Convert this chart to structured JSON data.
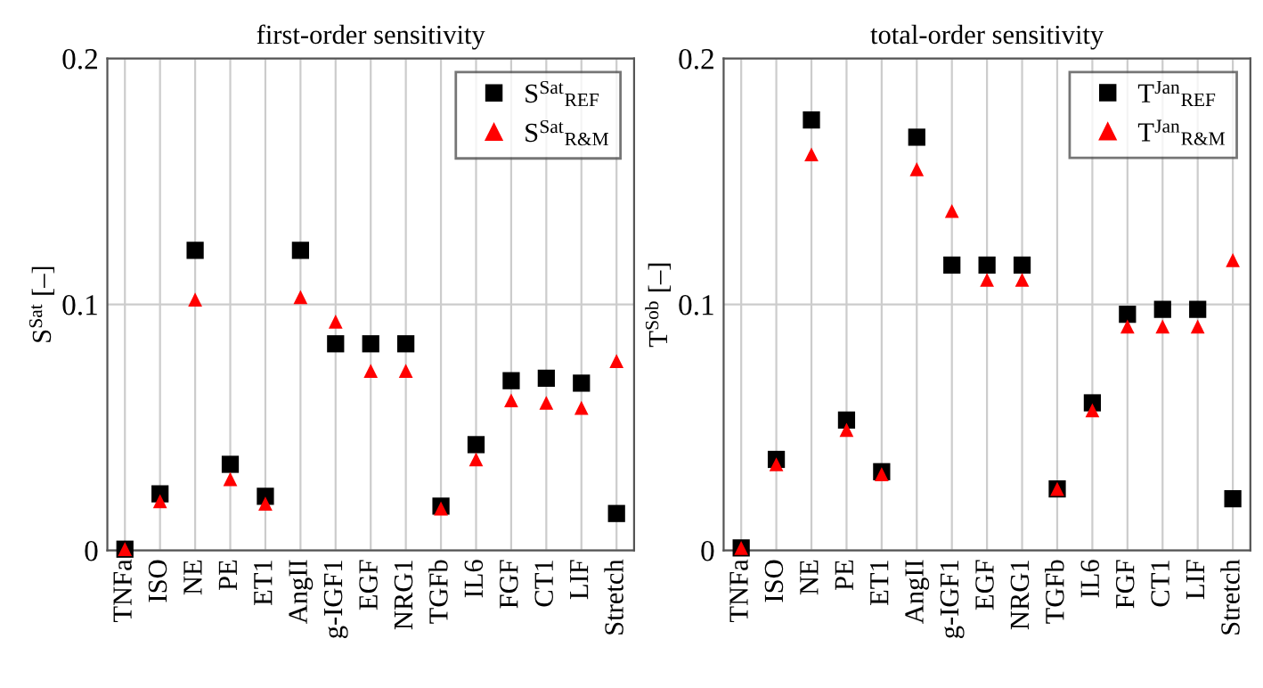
{
  "chart_data": [
    {
      "type": "scatter",
      "title": "first-order sensitivity",
      "ylabel": "S$^{Sat}$ [–]",
      "categories": [
        "TNFa",
        "ISO",
        "NE",
        "PE",
        "ET1",
        "AngII",
        "g-IGF1",
        "EGF",
        "NRG1",
        "TGFb",
        "IL6",
        "FGF",
        "CT1",
        "LIF",
        "Stretch"
      ],
      "series": [
        {
          "name": "S$^{Sat}$$_{REF}$",
          "color": "#000000",
          "marker": "square",
          "values": [
            0.0005,
            0.023,
            0.122,
            0.035,
            0.022,
            0.122,
            0.084,
            0.084,
            0.084,
            0.018,
            0.043,
            0.069,
            0.07,
            0.068,
            0.015
          ]
        },
        {
          "name": "S$^{Sat}$$_{R&M}$",
          "color": "#ff0000",
          "marker": "triangle",
          "values": [
            0.0005,
            0.02,
            0.102,
            0.029,
            0.019,
            0.103,
            0.093,
            0.073,
            0.073,
            0.017,
            0.037,
            0.061,
            0.06,
            0.058,
            0.077
          ]
        }
      ],
      "ylim": [
        0,
        0.2
      ],
      "yticks": [
        0,
        0.1,
        0.2
      ],
      "grid": true,
      "legend": "top right"
    },
    {
      "type": "scatter",
      "title": "total-order sensitivity",
      "ylabel": "T$^{Sob}$ [–]",
      "categories": [
        "TNFa",
        "ISO",
        "NE",
        "PE",
        "ET1",
        "AngII",
        "g-IGF1",
        "EGF",
        "NRG1",
        "TGFb",
        "IL6",
        "FGF",
        "CT1",
        "LIF",
        "Stretch"
      ],
      "series": [
        {
          "name": "T$^{Jan}$$_{REF}$",
          "color": "#000000",
          "marker": "square",
          "values": [
            0.001,
            0.037,
            0.175,
            0.053,
            0.032,
            0.168,
            0.116,
            0.116,
            0.116,
            0.025,
            0.06,
            0.096,
            0.098,
            0.098,
            0.021
          ]
        },
        {
          "name": "T$^{Jan}$$_{R&M}$",
          "color": "#ff0000",
          "marker": "triangle",
          "values": [
            0.001,
            0.035,
            0.161,
            0.049,
            0.031,
            0.155,
            0.138,
            0.11,
            0.11,
            0.025,
            0.057,
            0.091,
            0.091,
            0.091,
            0.118
          ]
        }
      ],
      "ylim": [
        0,
        0.2
      ],
      "yticks": [
        0,
        0.1,
        0.2
      ],
      "grid": true,
      "legend": "top right"
    }
  ]
}
